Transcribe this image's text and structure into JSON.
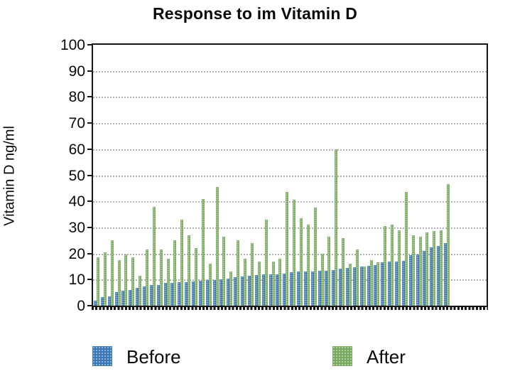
{
  "title": "Response to im Vitamin D",
  "y_axis": {
    "label": "Vitamin D ng/ml",
    "ticks": [
      0,
      10,
      20,
      30,
      40,
      50,
      60,
      70,
      80,
      90,
      100
    ],
    "min": 0,
    "max": 100
  },
  "legend": [
    {
      "label": "Before",
      "color": "#3c78b4"
    },
    {
      "label": "After",
      "color": "#78ab5f"
    }
  ],
  "colors": {
    "before_bar": "#3c78b4",
    "after_bar": "#78ab5f",
    "gridline": "#b5aeb5",
    "axis": "#161616",
    "background": "#ffffff"
  },
  "chart_data": {
    "type": "bar",
    "title": "Response to im Vitamin D",
    "xlabel": "",
    "ylabel": "Vitamin D ng/ml",
    "ylim": [
      0,
      100
    ],
    "y_tick_step": 10,
    "grid": true,
    "legend_position": "bottom",
    "n_pairs": 51,
    "series": [
      {
        "name": "Before",
        "color": "#3c78b4",
        "values": [
          2,
          3.2,
          3.5,
          5.1,
          5.6,
          5.9,
          6.7,
          7.4,
          7.8,
          8,
          8.7,
          8.7,
          8.9,
          9.1,
          9.4,
          9.6,
          9.7,
          9.9,
          10,
          10.3,
          10.8,
          11.2,
          11.4,
          11.7,
          11.9,
          12,
          12.1,
          12.3,
          12.9,
          13,
          13.2,
          13.2,
          13.3,
          13.4,
          13.6,
          14.2,
          14.4,
          14.6,
          15,
          15.3,
          15.6,
          16.7,
          17,
          17,
          17.2,
          19.3,
          19.5,
          21,
          22.3,
          23,
          24
        ]
      },
      {
        "name": "After",
        "color": "#78ab5f",
        "values": [
          18.5,
          20.5,
          25,
          17.5,
          19.5,
          18.5,
          11.5,
          21.5,
          38,
          21.5,
          18,
          25,
          33,
          27,
          22,
          41,
          16,
          45.5,
          26.5,
          13,
          25,
          18,
          24,
          17,
          33,
          17,
          18,
          43.5,
          40.5,
          33.5,
          31,
          37.5,
          20,
          26.5,
          60,
          26,
          16,
          21.5,
          15,
          17.5,
          16.5,
          30.5,
          31,
          29,
          43.5,
          27,
          26.5,
          28,
          28.5,
          29,
          46.5
        ]
      }
    ]
  }
}
